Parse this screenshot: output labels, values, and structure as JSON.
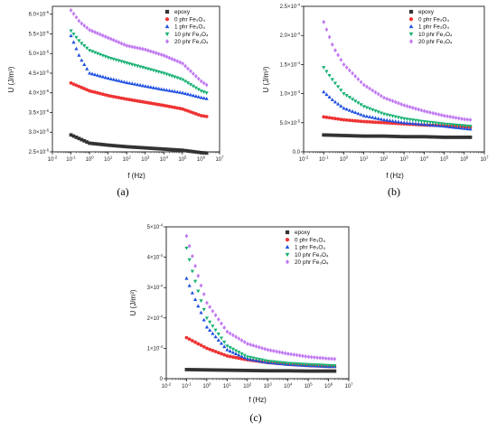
{
  "colors": {
    "epoxy": "#333333",
    "phr0": "#ee3333",
    "phr1": "#1e4fe0",
    "phr10": "#14b070",
    "phr20": "#c27cf2"
  },
  "chart_data": [
    {
      "panel_label": "(a)",
      "type": "scatter",
      "x_scale": "log",
      "xlabel": "f (Hz)",
      "ylabel": "U (J/m³)",
      "xlim": [
        0.01,
        10000000
      ],
      "ylim": [
        2.5e-06,
        6.2e-06
      ],
      "x_ticks": [
        {
          "value": 0.01,
          "base": "10",
          "exp": "-2"
        },
        {
          "value": 0.1,
          "base": "10",
          "exp": "-1"
        },
        {
          "value": 1,
          "base": "10",
          "exp": "0"
        },
        {
          "value": 10,
          "base": "10",
          "exp": "1"
        },
        {
          "value": 100,
          "base": "10",
          "exp": "2"
        },
        {
          "value": 1000,
          "base": "10",
          "exp": "3"
        },
        {
          "value": 10000,
          "base": "10",
          "exp": "4"
        },
        {
          "value": 100000,
          "base": "10",
          "exp": "5"
        },
        {
          "value": 1000000,
          "base": "10",
          "exp": "6"
        },
        {
          "value": 10000000,
          "base": "10",
          "exp": "7"
        }
      ],
      "y_ticks": [
        {
          "value": 2.5e-06,
          "mant": "2.5×10",
          "exp": "-6"
        },
        {
          "value": 3e-06,
          "mant": "3.0×10",
          "exp": "-6"
        },
        {
          "value": 3.5e-06,
          "mant": "3.5×10",
          "exp": "-6"
        },
        {
          "value": 4e-06,
          "mant": "4.0×10",
          "exp": "-6"
        },
        {
          "value": 4.5e-06,
          "mant": "4.5×10",
          "exp": "-6"
        },
        {
          "value": 5e-06,
          "mant": "5.0×10",
          "exp": "-6"
        },
        {
          "value": 5.5e-06,
          "mant": "5.5×10",
          "exp": "-6"
        },
        {
          "value": 6e-06,
          "mant": "6.0×10",
          "exp": "-6"
        }
      ],
      "legend_position": "top-right",
      "series": [
        {
          "name": "epoxy",
          "marker": "square",
          "color_key": "epoxy",
          "x": [
            0.1,
            1,
            10,
            100,
            1000,
            10000,
            100000,
            1000000,
            2000000
          ],
          "y": [
            2.93e-06,
            2.72e-06,
            2.67e-06,
            2.63e-06,
            2.6e-06,
            2.57e-06,
            2.54e-06,
            2.48e-06,
            2.47e-06
          ]
        },
        {
          "name": "0 phr Fe₃O₄",
          "marker": "circle",
          "color_key": "phr0",
          "x": [
            0.1,
            1,
            10,
            100,
            1000,
            10000,
            100000,
            1000000,
            2000000
          ],
          "y": [
            4.25e-06,
            4.05e-06,
            3.93e-06,
            3.84e-06,
            3.76e-06,
            3.68e-06,
            3.59e-06,
            3.42e-06,
            3.4e-06
          ]
        },
        {
          "name": "1 phr Fe₃O₄",
          "marker": "triangle-up",
          "color_key": "phr1",
          "x": [
            0.1,
            0.3,
            1,
            10,
            100,
            1000,
            10000,
            100000,
            1000000,
            2000000
          ],
          "y": [
            5.45e-06,
            4.9e-06,
            4.5e-06,
            4.37e-06,
            4.26e-06,
            4.17e-06,
            4.08e-06,
            4e-06,
            3.88e-06,
            3.85e-06
          ]
        },
        {
          "name": "10 phr Fe₃O₄",
          "marker": "triangle-down",
          "color_key": "phr10",
          "x": [
            0.1,
            0.3,
            1,
            10,
            100,
            1000,
            10000,
            100000,
            1000000,
            2000000
          ],
          "y": [
            5.58e-06,
            5.3e-06,
            5.08e-06,
            4.9e-06,
            4.76e-06,
            4.63e-06,
            4.5e-06,
            4.34e-06,
            4.05e-06,
            4e-06
          ]
        },
        {
          "name": "20 phr Fe₃O₄",
          "marker": "diamond",
          "color_key": "phr20",
          "x": [
            0.1,
            0.3,
            1,
            10,
            100,
            1000,
            10000,
            100000,
            1000000,
            2000000
          ],
          "y": [
            6.1e-06,
            5.8e-06,
            5.6e-06,
            5.4e-06,
            5.2e-06,
            5.1e-06,
            4.95e-06,
            4.75e-06,
            4.3e-06,
            4.2e-06
          ]
        }
      ]
    },
    {
      "panel_label": "(b)",
      "type": "scatter",
      "x_scale": "log",
      "xlabel": "f (Hz)",
      "ylabel": "U (J/m³)",
      "xlim": [
        0.01,
        10000000
      ],
      "ylim": [
        0,
        0.00025
      ],
      "x_ticks": [
        {
          "value": 0.01,
          "base": "10",
          "exp": "-2"
        },
        {
          "value": 0.1,
          "base": "10",
          "exp": "-1"
        },
        {
          "value": 1,
          "base": "10",
          "exp": "0"
        },
        {
          "value": 10,
          "base": "10",
          "exp": "1"
        },
        {
          "value": 100,
          "base": "10",
          "exp": "2"
        },
        {
          "value": 1000,
          "base": "10",
          "exp": "3"
        },
        {
          "value": 10000,
          "base": "10",
          "exp": "4"
        },
        {
          "value": 100000,
          "base": "10",
          "exp": "5"
        },
        {
          "value": 1000000,
          "base": "10",
          "exp": "6"
        },
        {
          "value": 10000000,
          "base": "10",
          "exp": "7"
        }
      ],
      "y_ticks": [
        {
          "value": 0,
          "mant": "0.0",
          "exp": ""
        },
        {
          "value": 5e-05,
          "mant": "5.0×10",
          "exp": "-5"
        },
        {
          "value": 0.0001,
          "mant": "1.0×10",
          "exp": "-4"
        },
        {
          "value": 0.00015,
          "mant": "1.5×10",
          "exp": "-4"
        },
        {
          "value": 0.0002,
          "mant": "2.0×10",
          "exp": "-4"
        },
        {
          "value": 0.00025,
          "mant": "2.5×10",
          "exp": "-4"
        }
      ],
      "legend_position": "top-right",
      "series": [
        {
          "name": "epoxy",
          "marker": "square",
          "color_key": "epoxy",
          "x": [
            0.1,
            1,
            10,
            100,
            1000,
            10000,
            100000,
            1000000,
            2000000
          ],
          "y": [
            2.9e-05,
            2.8e-05,
            2.7e-05,
            2.7e-05,
            2.6e-05,
            2.6e-05,
            2.5e-05,
            2.5e-05,
            2.5e-05
          ]
        },
        {
          "name": "0 phr Fe₃O₄",
          "marker": "circle",
          "color_key": "phr0",
          "x": [
            0.1,
            1,
            10,
            100,
            1000,
            10000,
            100000,
            1000000,
            2000000
          ],
          "y": [
            6e-05,
            5.5e-05,
            5.2e-05,
            5e-05,
            4.8e-05,
            4.6e-05,
            4.5e-05,
            4.3e-05,
            4.2e-05
          ]
        },
        {
          "name": "1 phr Fe₃O₄",
          "marker": "triangle-up",
          "color_key": "phr1",
          "x": [
            0.1,
            0.3,
            1,
            10,
            100,
            1000,
            10000,
            100000,
            1000000,
            2000000
          ],
          "y": [
            0.000103,
            8.8e-05,
            7.5e-05,
            6.2e-05,
            5.5e-05,
            5e-05,
            4.7e-05,
            4.4e-05,
            4e-05,
            3.9e-05
          ]
        },
        {
          "name": "10 phr Fe₃O₄",
          "marker": "triangle-down",
          "color_key": "phr10",
          "x": [
            0.1,
            0.3,
            1,
            10,
            100,
            1000,
            10000,
            100000,
            1000000,
            2000000
          ],
          "y": [
            0.000145,
            0.000122,
            0.0001,
            7.8e-05,
            6.5e-05,
            5.7e-05,
            5.2e-05,
            4.8e-05,
            4.5e-05,
            4.4e-05
          ]
        },
        {
          "name": "20 phr Fe₃O₄",
          "marker": "diamond",
          "color_key": "phr20",
          "x": [
            0.1,
            0.3,
            1,
            10,
            100,
            1000,
            10000,
            100000,
            1000000,
            2000000
          ],
          "y": [
            0.000223,
            0.00018,
            0.00015,
            0.000115,
            9.3e-05,
            8e-05,
            7e-05,
            6.2e-05,
            5.6e-05,
            5.5e-05
          ]
        }
      ]
    },
    {
      "panel_label": "(c)",
      "type": "scatter",
      "x_scale": "log",
      "xlabel": "f (Hz)",
      "ylabel": "U (J/m³)",
      "xlim": [
        0.01,
        10000000
      ],
      "ylim": [
        0,
        0.0005
      ],
      "x_ticks": [
        {
          "value": 0.01,
          "base": "10",
          "exp": "-2"
        },
        {
          "value": 0.1,
          "base": "10",
          "exp": "-1"
        },
        {
          "value": 1,
          "base": "10",
          "exp": "0"
        },
        {
          "value": 10,
          "base": "10",
          "exp": "1"
        },
        {
          "value": 100,
          "base": "10",
          "exp": "2"
        },
        {
          "value": 1000,
          "base": "10",
          "exp": "3"
        },
        {
          "value": 10000,
          "base": "10",
          "exp": "4"
        },
        {
          "value": 100000,
          "base": "10",
          "exp": "5"
        },
        {
          "value": 1000000,
          "base": "10",
          "exp": "6"
        },
        {
          "value": 10000000,
          "base": "10",
          "exp": "7"
        }
      ],
      "y_ticks": [
        {
          "value": 0,
          "mant": "0",
          "exp": ""
        },
        {
          "value": 0.0001,
          "mant": "1×10",
          "exp": "-4"
        },
        {
          "value": 0.0002,
          "mant": "2×10",
          "exp": "-4"
        },
        {
          "value": 0.0003,
          "mant": "3×10",
          "exp": "-4"
        },
        {
          "value": 0.0004,
          "mant": "4×10",
          "exp": "-4"
        },
        {
          "value": 0.0005,
          "mant": "5×10",
          "exp": "-4"
        }
      ],
      "legend_position": "top-right",
      "series": [
        {
          "name": "epoxy",
          "marker": "square",
          "color_key": "epoxy",
          "x": [
            0.1,
            1,
            10,
            100,
            1000,
            10000,
            100000,
            1000000,
            2000000
          ],
          "y": [
            3e-05,
            2.9e-05,
            2.8e-05,
            2.7e-05,
            2.6e-05,
            2.6e-05,
            2.5e-05,
            2.5e-05,
            2.5e-05
          ]
        },
        {
          "name": "0 phr Fe₃O₄",
          "marker": "circle",
          "color_key": "phr0",
          "x": [
            0.1,
            1,
            10,
            100,
            1000,
            10000,
            100000,
            1000000,
            2000000
          ],
          "y": [
            0.000135,
            0.0001,
            7.5e-05,
            6.2e-05,
            5.3e-05,
            4.7e-05,
            4.3e-05,
            4e-05,
            4e-05
          ]
        },
        {
          "name": "1 phr Fe₃O₄",
          "marker": "triangle-up",
          "color_key": "phr1",
          "x": [
            0.1,
            0.2,
            0.5,
            1,
            10,
            100,
            1000,
            10000,
            100000,
            1000000,
            2000000
          ],
          "y": [
            0.00033,
            0.00028,
            0.00022,
            0.00017,
            9.5e-05,
            6.5e-05,
            5.3e-05,
            4.7e-05,
            4.3e-05,
            4e-05,
            4e-05
          ]
        },
        {
          "name": "10 phr Fe₃O₄",
          "marker": "triangle-down",
          "color_key": "phr10",
          "x": [
            0.1,
            0.2,
            0.5,
            1,
            10,
            100,
            1000,
            10000,
            100000,
            1000000,
            2000000
          ],
          "y": [
            0.00043,
            0.00035,
            0.00026,
            0.0002,
            0.000108,
            7.2e-05,
            5.8e-05,
            5.1e-05,
            4.7e-05,
            4.4e-05,
            4.3e-05
          ]
        },
        {
          "name": "20 phr Fe₃O₄",
          "marker": "diamond",
          "color_key": "phr20",
          "x": [
            0.1,
            0.2,
            0.5,
            1,
            10,
            100,
            1000,
            10000,
            100000,
            1000000,
            2000000
          ],
          "y": [
            0.00047,
            0.0004,
            0.00031,
            0.00025,
            0.000155,
            0.000115,
            9.5e-05,
            8.2e-05,
            7.2e-05,
            6.6e-05,
            6.5e-05
          ]
        }
      ]
    }
  ]
}
